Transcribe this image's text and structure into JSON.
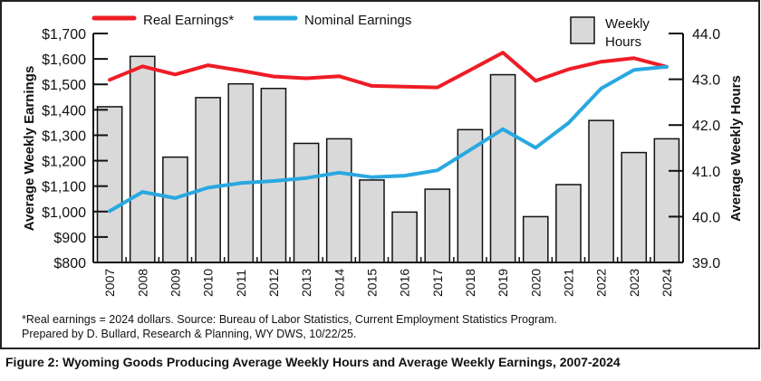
{
  "caption": "Figure 2: Wyoming Goods Producing Average Weekly Hours and Average Weekly Earnings, 2007-2024",
  "footnotes": [
    "*Real earnings = 2024 dollars. Source: Bureau of Labor Statistics, Current Employment Statistics Program.",
    "Prepared by D. Bullard, Research & Planning, WY DWS, 10/22/25."
  ],
  "chart_data": {
    "type": "bar+line",
    "categories": [
      "2007",
      "2008",
      "2009",
      "2010",
      "2011",
      "2012",
      "2013",
      "2014",
      "2015",
      "2016",
      "2017",
      "2018",
      "2019",
      "2020",
      "2021",
      "2022",
      "2023",
      "2024"
    ],
    "ylabel_left": "Average Weekly Earnings",
    "ylabel_right": "Average Weekly Hours",
    "ylim_left": [
      800,
      1700
    ],
    "ylim_right": [
      39.0,
      44.0
    ],
    "yticks_left": [
      "$800",
      "$900",
      "$1,000",
      "$1,100",
      "$1,200",
      "$1,300",
      "$1,400",
      "$1,500",
      "$1,600",
      "$1,700"
    ],
    "yticks_right": [
      "39.0",
      "40.0",
      "41.0",
      "42.0",
      "43.0",
      "44.0"
    ],
    "grid": false,
    "legend_placement": "top",
    "bars": {
      "name": "Weekly Hours",
      "name_lines": [
        "Weekly",
        "Hours"
      ],
      "axis": "right",
      "color": "#d9d9d9",
      "values": [
        42.4,
        43.5,
        41.3,
        42.6,
        42.9,
        42.8,
        41.6,
        41.7,
        40.8,
        40.1,
        40.6,
        41.9,
        43.1,
        40.0,
        40.7,
        42.1,
        41.4,
        41.7
      ]
    },
    "series": [
      {
        "name": "Real Earnings*",
        "axis": "left",
        "color": "#ee1c25",
        "values": [
          1518,
          1571,
          1539,
          1575,
          1554,
          1531,
          1524,
          1532,
          1494,
          1491,
          1488,
          1556,
          1625,
          1514,
          1559,
          1589,
          1603,
          1569
        ]
      },
      {
        "name": "Nominal Earnings",
        "axis": "left",
        "color": "#29a8e0",
        "values": [
          1002,
          1077,
          1053,
          1094,
          1112,
          1120,
          1132,
          1153,
          1135,
          1141,
          1162,
          1242,
          1324,
          1251,
          1348,
          1484,
          1557,
          1569
        ]
      }
    ]
  }
}
